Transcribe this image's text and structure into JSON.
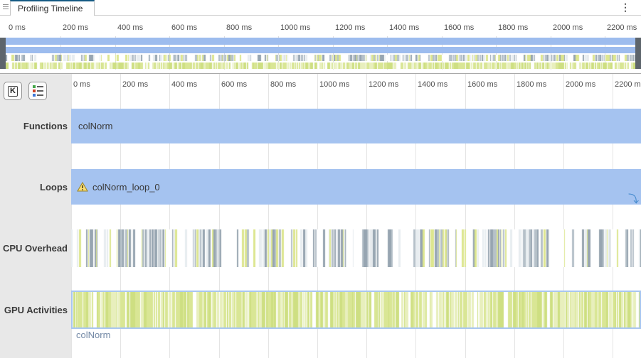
{
  "tab_bar": {
    "tab_title": "Profiling Timeline"
  },
  "overview": {
    "axis_ticks": [
      "0 ms",
      "200 ms",
      "400 ms",
      "600 ms",
      "800 ms",
      "1000 ms",
      "1200 ms",
      "1400 ms",
      "1600 ms",
      "1800 ms",
      "2000 ms",
      "2200 ms"
    ]
  },
  "main": {
    "axis_ticks": [
      "0 ms",
      "200 ms",
      "400 ms",
      "600 ms",
      "800 ms",
      "1000 ms",
      "1200 ms",
      "1400 ms",
      "1600 ms",
      "1800 ms",
      "2000 ms",
      "2200 ms"
    ],
    "toolbar": {
      "kernel_button_label": "K"
    },
    "rows": [
      {
        "label": "Functions",
        "bar_label": "colNorm"
      },
      {
        "label": "Loops",
        "bar_label": "colNorm_loop_0",
        "has_warning": true
      },
      {
        "label": "CPU Overhead"
      },
      {
        "label": "GPU Activities",
        "caption": "colNorm"
      }
    ]
  },
  "icons": {
    "jump_arrow": "⤵",
    "kebab_menu": "⋮"
  },
  "colors": {
    "accent_tab": "#155a83",
    "bar_blue": "#a5c3f0",
    "minimap_blue": "#9dbcee",
    "gpu_border_blue": "#a8c6f0",
    "caption_blue": "#7288a5",
    "warning_fill": "#f8dc74",
    "cpu_palette": [
      "#97a5b1",
      "#b6c1c9",
      "#dde690",
      "#e8edf0"
    ],
    "cpu_weights": [
      0.34,
      0.22,
      0.26,
      0.18
    ],
    "gpu_palette": [
      "#d9e695",
      "#cedf82",
      "#e8efbd"
    ],
    "gpu_weights": [
      0.45,
      0.3,
      0.25
    ]
  }
}
